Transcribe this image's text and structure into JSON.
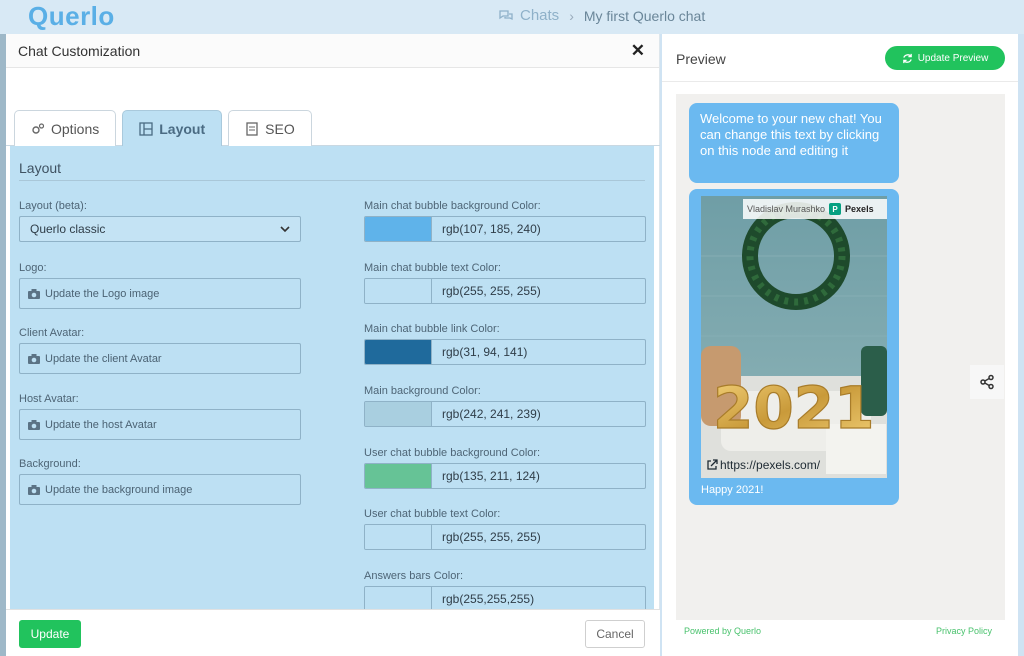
{
  "app": {
    "logo": "Querlo",
    "breadcrumb": [
      "Chats",
      "My first Querlo chat"
    ]
  },
  "modal": {
    "title": "Chat Customization",
    "tabs": [
      {
        "label": "Options",
        "icon": "gears-icon"
      },
      {
        "label": "Layout",
        "icon": "layout-icon",
        "active": true
      },
      {
        "label": "SEO",
        "icon": "document-icon"
      }
    ],
    "section_title": "Layout",
    "left": {
      "layout_label": "Layout (beta):",
      "layout_value": "Querlo classic",
      "logo_label": "Logo:",
      "logo_button": "Update the Logo image",
      "client_avatar_label": "Client Avatar:",
      "client_avatar_button": "Update the client Avatar",
      "host_avatar_label": "Host Avatar:",
      "host_avatar_button": "Update the host Avatar",
      "background_label": "Background:",
      "background_button": "Update the background image"
    },
    "colors": [
      {
        "label": "Main chat bubble background Color:",
        "value": "rgb(107, 185, 240)",
        "swatch": "#5fb3ea"
      },
      {
        "label": "Main chat bubble text Color:",
        "value": "rgb(255, 255, 255)",
        "swatch": "#bde0f3"
      },
      {
        "label": "Main chat bubble link Color:",
        "value": "rgb(31, 94, 141)",
        "swatch": "#1f6a9c"
      },
      {
        "label": "Main background Color:",
        "value": "rgb(242, 241, 239)",
        "swatch": "#a9cfe0"
      },
      {
        "label": "User chat bubble background Color:",
        "value": "rgb(135, 211, 124)",
        "swatch": "#66c396"
      },
      {
        "label": "User chat bubble text Color:",
        "value": "rgb(255, 255, 255)",
        "swatch": "#bde0f3"
      },
      {
        "label": "Answers bars Color:",
        "value": "rgb(255,255,255)",
        "swatch": "#bde0f3"
      }
    ],
    "footer": {
      "update": "Update",
      "cancel": "Cancel"
    }
  },
  "preview": {
    "title": "Preview",
    "update_button": "Update Preview",
    "bubble_text": "Welcome to your new chat! You can change this text by clicking on this node and editing it",
    "image_credit_author": "Vladislav Murashko",
    "image_credit_badge": "P",
    "image_credit_brand": "Pexels",
    "image_year": "2021",
    "image_link": "https://pexels.com/",
    "caption": "Happy 2021!",
    "powered_by": "Powered by Querlo",
    "privacy": "Privacy Policy"
  },
  "theme": {
    "accent_green": "#21c35d",
    "bubble_blue": "#6bb9f0",
    "panel_blue": "#bde0f3"
  }
}
